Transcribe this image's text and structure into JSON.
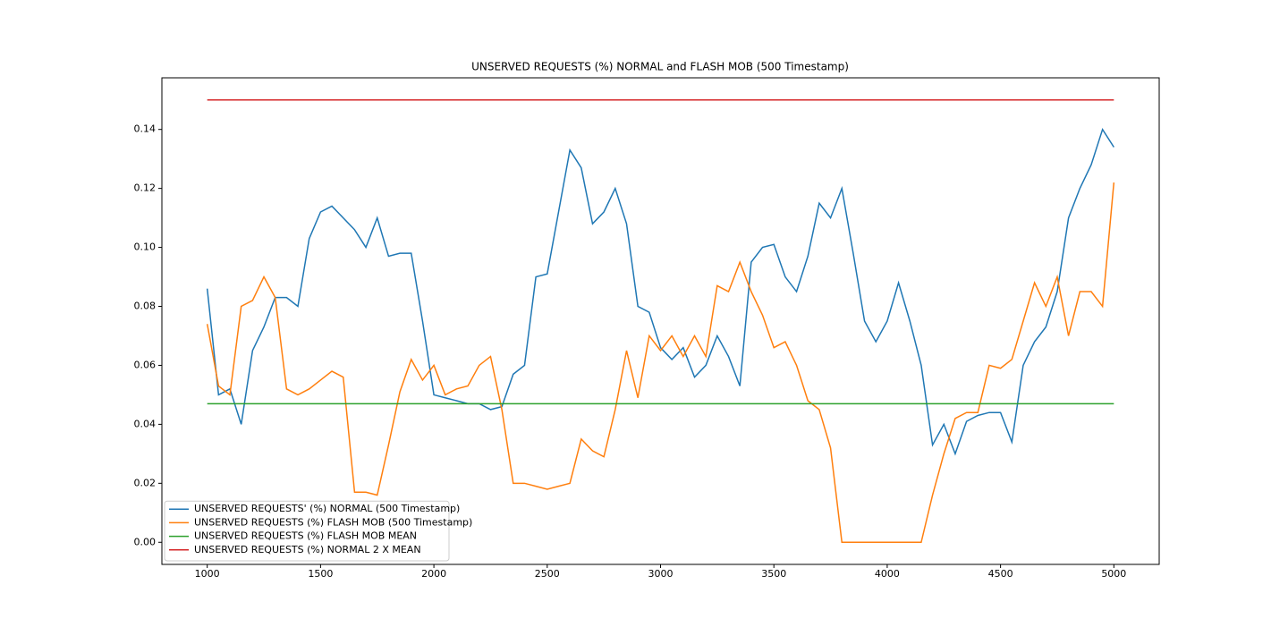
{
  "chart_data": {
    "type": "line",
    "title": "UNSERVED REQUESTS (%) NORMAL and FLASH MOB (500 Timestamp)",
    "x": [
      1000,
      1050,
      1100,
      1150,
      1200,
      1250,
      1300,
      1350,
      1400,
      1450,
      1500,
      1550,
      1600,
      1650,
      1700,
      1750,
      1800,
      1850,
      1900,
      1950,
      2000,
      2050,
      2100,
      2150,
      2200,
      2250,
      2300,
      2350,
      2400,
      2450,
      2500,
      2550,
      2600,
      2650,
      2700,
      2750,
      2800,
      2850,
      2900,
      2950,
      3000,
      3050,
      3100,
      3150,
      3200,
      3250,
      3300,
      3350,
      3400,
      3450,
      3500,
      3550,
      3600,
      3650,
      3700,
      3750,
      3800,
      3850,
      3900,
      3950,
      4000,
      4050,
      4100,
      4150,
      4200,
      4250,
      4300,
      4350,
      4400,
      4450,
      4500,
      4550,
      4600,
      4650,
      4700,
      4750,
      4800,
      4850,
      4900,
      4950,
      5000
    ],
    "series": [
      {
        "name": "UNSERVED REQUESTS' (%) NORMAL (500 Timestamp)",
        "color": "#1f77b4",
        "values": [
          0.086,
          0.05,
          0.052,
          0.04,
          0.065,
          0.073,
          0.083,
          0.083,
          0.08,
          0.103,
          0.112,
          0.114,
          0.11,
          0.106,
          0.1,
          0.11,
          0.097,
          0.098,
          0.098,
          0.075,
          0.05,
          0.049,
          0.048,
          0.047,
          0.047,
          0.045,
          0.046,
          0.057,
          0.06,
          0.09,
          0.091,
          0.112,
          0.133,
          0.127,
          0.108,
          0.112,
          0.12,
          0.108,
          0.08,
          0.078,
          0.066,
          0.062,
          0.066,
          0.056,
          0.06,
          0.07,
          0.063,
          0.053,
          0.095,
          0.1,
          0.101,
          0.09,
          0.085,
          0.097,
          0.115,
          0.11,
          0.12,
          0.098,
          0.075,
          0.068,
          0.075,
          0.088,
          0.075,
          0.06,
          0.033,
          0.04,
          0.03,
          0.041,
          0.043,
          0.044,
          0.044,
          0.034,
          0.06,
          0.068,
          0.073,
          0.085,
          0.11,
          0.12,
          0.128,
          0.14,
          0.134
        ]
      },
      {
        "name": "UNSERVED REQUESTS (%) FLASH MOB (500 Timestamp)",
        "color": "#ff7f0e",
        "values": [
          0.074,
          0.053,
          0.05,
          0.08,
          0.082,
          0.09,
          0.083,
          0.052,
          0.05,
          0.052,
          0.055,
          0.058,
          0.056,
          0.017,
          0.017,
          0.016,
          0.033,
          0.051,
          0.062,
          0.055,
          0.06,
          0.05,
          0.052,
          0.053,
          0.06,
          0.063,
          0.045,
          0.02,
          0.02,
          0.019,
          0.018,
          0.019,
          0.02,
          0.035,
          0.031,
          0.029,
          0.045,
          0.065,
          0.049,
          0.07,
          0.065,
          0.07,
          0.063,
          0.07,
          0.063,
          0.087,
          0.085,
          0.095,
          0.085,
          0.077,
          0.066,
          0.068,
          0.06,
          0.048,
          0.045,
          0.032,
          0,
          0,
          0,
          0,
          0,
          0,
          0,
          0,
          0.016,
          0.03,
          0.042,
          0.044,
          0.044,
          0.06,
          0.059,
          0.062,
          0.075,
          0.088,
          0.08,
          0.09,
          0.07,
          0.085,
          0.085,
          0.08,
          0.122
        ]
      },
      {
        "name": "UNSERVED REQUESTS (%) FLASH MOB MEAN",
        "color": "#2ca02c",
        "x": [
          1000,
          5000
        ],
        "values": [
          0.047,
          0.047
        ]
      },
      {
        "name": "UNSERVED REQUESTS (%) NORMAL 2 X MEAN",
        "color": "#d62728",
        "x": [
          1000,
          5000
        ],
        "values": [
          0.15,
          0.15
        ]
      }
    ],
    "xlim": [
      800,
      5200
    ],
    "xticks": [
      1000,
      1500,
      2000,
      2500,
      3000,
      3500,
      4000,
      4500,
      5000
    ],
    "ylim": [
      -0.0075,
      0.1575
    ],
    "yticks": [
      {
        "value": 0,
        "label": "0.00"
      },
      0.02,
      0.04,
      0.06,
      0.08,
      {
        "value": 0.1,
        "label": "0.10"
      },
      0.12,
      0.14
    ],
    "grid": false,
    "legend": "lower left"
  }
}
